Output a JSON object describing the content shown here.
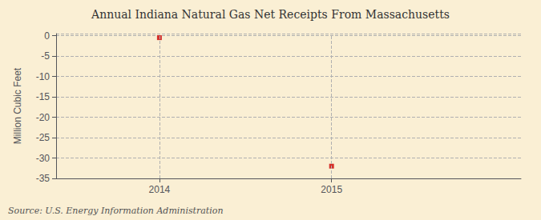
{
  "chart_data": {
    "type": "scatter",
    "title": "Annual Indiana Natural Gas Net Receipts From Massachusetts",
    "ylabel": "Million Cubic Feet",
    "annotation": "Source: U.S. Energy Information Administration",
    "x": [
      2014,
      2015
    ],
    "values": [
      -0.5,
      -32.0
    ],
    "color": "#cc0000",
    "marker": "square",
    "xlim": [
      2013.4,
      2016.1
    ],
    "xticks": [
      2014,
      2015
    ],
    "ylim": [
      -35,
      0.5
    ],
    "yticks": [
      0,
      -5,
      -10,
      -15,
      -20,
      -25,
      -30,
      -35
    ],
    "grid": true
  }
}
